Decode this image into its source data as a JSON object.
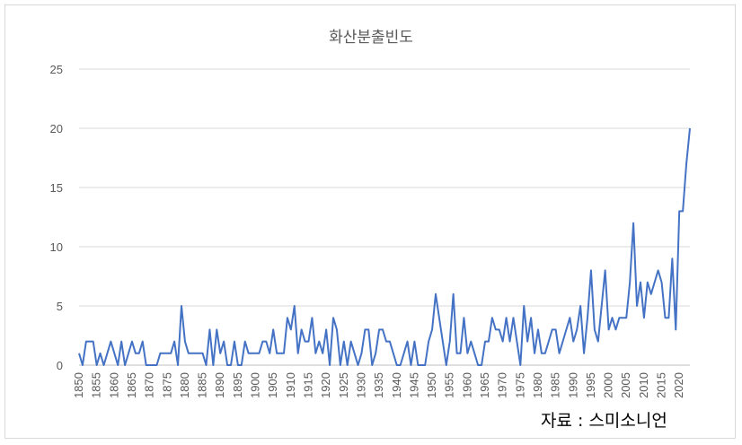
{
  "chart_data": {
    "type": "line",
    "title": "화산분출빈도",
    "xlabel": "",
    "ylabel": "",
    "xlim": [
      1850,
      2023
    ],
    "ylim": [
      0,
      25
    ],
    "y_ticks": [
      0,
      5,
      10,
      15,
      20,
      25
    ],
    "x_ticks": [
      1850,
      1855,
      1860,
      1865,
      1870,
      1875,
      1880,
      1885,
      1890,
      1895,
      1900,
      1905,
      1910,
      1915,
      1920,
      1925,
      1930,
      1935,
      1940,
      1945,
      1950,
      1955,
      1960,
      1965,
      1970,
      1975,
      1980,
      1985,
      1990,
      1995,
      2000,
      2005,
      2010,
      2015,
      2020
    ],
    "grid": "horizontal",
    "legend": "none",
    "line_color": "#4472c4",
    "source_note": "자료 : 스미소니언",
    "x": [
      1850,
      1851,
      1852,
      1853,
      1854,
      1855,
      1856,
      1857,
      1858,
      1859,
      1860,
      1861,
      1862,
      1863,
      1864,
      1865,
      1866,
      1867,
      1868,
      1869,
      1870,
      1871,
      1872,
      1873,
      1874,
      1875,
      1876,
      1877,
      1878,
      1879,
      1880,
      1881,
      1882,
      1883,
      1884,
      1885,
      1886,
      1887,
      1888,
      1889,
      1890,
      1891,
      1892,
      1893,
      1894,
      1895,
      1896,
      1897,
      1898,
      1899,
      1900,
      1901,
      1902,
      1903,
      1904,
      1905,
      1906,
      1907,
      1908,
      1909,
      1910,
      1911,
      1912,
      1913,
      1914,
      1915,
      1916,
      1917,
      1918,
      1919,
      1920,
      1921,
      1922,
      1923,
      1924,
      1925,
      1926,
      1927,
      1928,
      1929,
      1930,
      1931,
      1932,
      1933,
      1934,
      1935,
      1936,
      1937,
      1938,
      1939,
      1940,
      1941,
      1942,
      1943,
      1944,
      1945,
      1946,
      1947,
      1948,
      1949,
      1950,
      1951,
      1952,
      1953,
      1954,
      1955,
      1956,
      1957,
      1958,
      1959,
      1960,
      1961,
      1962,
      1963,
      1964,
      1965,
      1966,
      1967,
      1968,
      1969,
      1970,
      1971,
      1972,
      1973,
      1974,
      1975,
      1976,
      1977,
      1978,
      1979,
      1980,
      1981,
      1982,
      1983,
      1984,
      1985,
      1986,
      1987,
      1988,
      1989,
      1990,
      1991,
      1992,
      1993,
      1994,
      1995,
      1996,
      1997,
      1998,
      1999,
      2000,
      2001,
      2002,
      2003,
      2004,
      2005,
      2006,
      2007,
      2008,
      2009,
      2010,
      2011,
      2012,
      2013,
      2014,
      2015,
      2016,
      2017,
      2018,
      2019,
      2020,
      2021,
      2022,
      2023
    ],
    "values": [
      1,
      0,
      2,
      2,
      2,
      0,
      1,
      0,
      1,
      2,
      1,
      0,
      2,
      0,
      1,
      2,
      1,
      1,
      2,
      0,
      0,
      0,
      0,
      1,
      1,
      1,
      1,
      2,
      0,
      5,
      2,
      1,
      1,
      1,
      1,
      1,
      0,
      3,
      0,
      3,
      1,
      2,
      0,
      0,
      2,
      0,
      0,
      2,
      1,
      1,
      1,
      1,
      2,
      2,
      1,
      3,
      1,
      1,
      1,
      4,
      3,
      5,
      1,
      3,
      2,
      2,
      4,
      1,
      2,
      1,
      3,
      0,
      4,
      3,
      0,
      2,
      0,
      2,
      1,
      0,
      1,
      3,
      3,
      0,
      1,
      3,
      3,
      2,
      2,
      1,
      0,
      0,
      1,
      2,
      0,
      2,
      0,
      0,
      0,
      2,
      3,
      6,
      4,
      2,
      0,
      2,
      6,
      1,
      1,
      4,
      1,
      2,
      1,
      0,
      0,
      2,
      2,
      4,
      3,
      3,
      2,
      4,
      2,
      4,
      2,
      0,
      5,
      2,
      4,
      1,
      3,
      1,
      1,
      2,
      3,
      3,
      1,
      2,
      3,
      4,
      2,
      3,
      5,
      1,
      4,
      8,
      3,
      2,
      5,
      8,
      3,
      4,
      3,
      4,
      4,
      4,
      7,
      12,
      5,
      7,
      4,
      7,
      6,
      7,
      8,
      7,
      4,
      4,
      9,
      3,
      13,
      13,
      17,
      20
    ]
  }
}
